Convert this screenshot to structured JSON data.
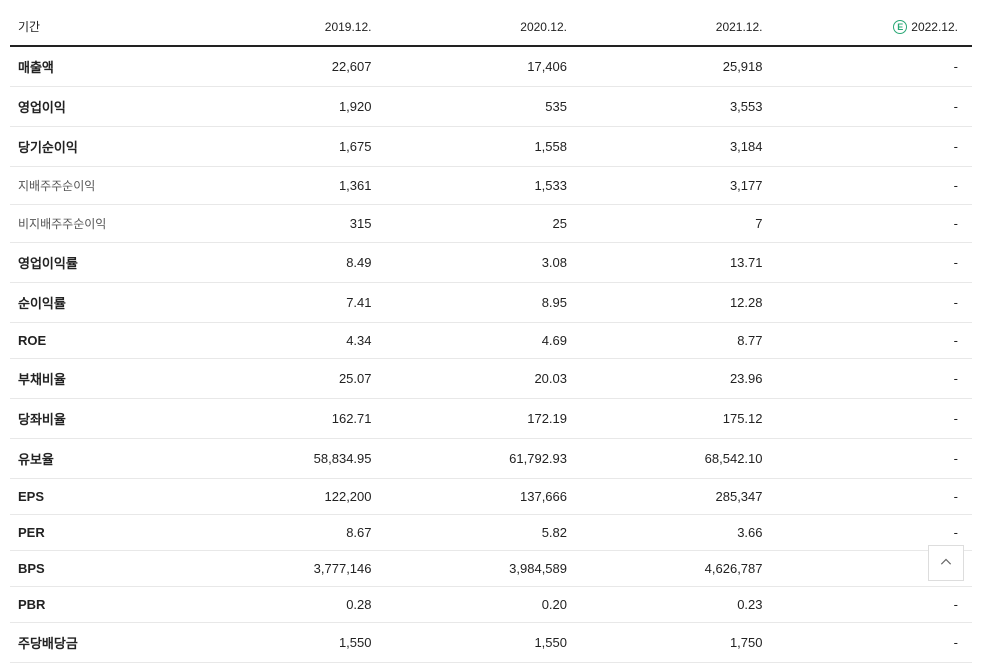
{
  "table": {
    "period_label": "기간",
    "estimate_marker": "E",
    "columns": [
      {
        "label": "2019.12.",
        "is_estimate": false
      },
      {
        "label": "2020.12.",
        "is_estimate": false
      },
      {
        "label": "2021.12.",
        "is_estimate": false
      },
      {
        "label": "2022.12.",
        "is_estimate": true
      }
    ],
    "rows": [
      {
        "label": "매출액",
        "sub": false,
        "values": [
          "22,607",
          "17,406",
          "25,918",
          "-"
        ]
      },
      {
        "label": "영업이익",
        "sub": false,
        "values": [
          "1,920",
          "535",
          "3,553",
          "-"
        ]
      },
      {
        "label": "당기순이익",
        "sub": false,
        "values": [
          "1,675",
          "1,558",
          "3,184",
          "-"
        ]
      },
      {
        "label": "지배주주순이익",
        "sub": true,
        "values": [
          "1,361",
          "1,533",
          "3,177",
          "-"
        ]
      },
      {
        "label": "비지배주주순이익",
        "sub": true,
        "values": [
          "315",
          "25",
          "7",
          "-"
        ]
      },
      {
        "label": "영업이익률",
        "sub": false,
        "values": [
          "8.49",
          "3.08",
          "13.71",
          "-"
        ]
      },
      {
        "label": "순이익률",
        "sub": false,
        "values": [
          "7.41",
          "8.95",
          "12.28",
          "-"
        ]
      },
      {
        "label": "ROE",
        "sub": false,
        "values": [
          "4.34",
          "4.69",
          "8.77",
          "-"
        ]
      },
      {
        "label": "부채비율",
        "sub": false,
        "values": [
          "25.07",
          "20.03",
          "23.96",
          "-"
        ]
      },
      {
        "label": "당좌비율",
        "sub": false,
        "values": [
          "162.71",
          "172.19",
          "175.12",
          "-"
        ]
      },
      {
        "label": "유보율",
        "sub": false,
        "values": [
          "58,834.95",
          "61,792.93",
          "68,542.10",
          "-"
        ]
      },
      {
        "label": "EPS",
        "sub": false,
        "values": [
          "122,200",
          "137,666",
          "285,347",
          "-"
        ]
      },
      {
        "label": "PER",
        "sub": false,
        "values": [
          "8.67",
          "5.82",
          "3.66",
          "-"
        ]
      },
      {
        "label": "BPS",
        "sub": false,
        "values": [
          "3,777,146",
          "3,984,589",
          "4,626,787",
          "-"
        ]
      },
      {
        "label": "PBR",
        "sub": false,
        "values": [
          "0.28",
          "0.20",
          "0.23",
          "-"
        ]
      },
      {
        "label": "주당배당금",
        "sub": false,
        "values": [
          "1,550",
          "1,550",
          "1,750",
          "-"
        ]
      }
    ]
  },
  "colors": {
    "text": "#222222",
    "subtext": "#555555",
    "divider": "#e8e8e8",
    "header_border": "#222222",
    "estimate_accent": "#2aa876",
    "background": "#ffffff"
  }
}
